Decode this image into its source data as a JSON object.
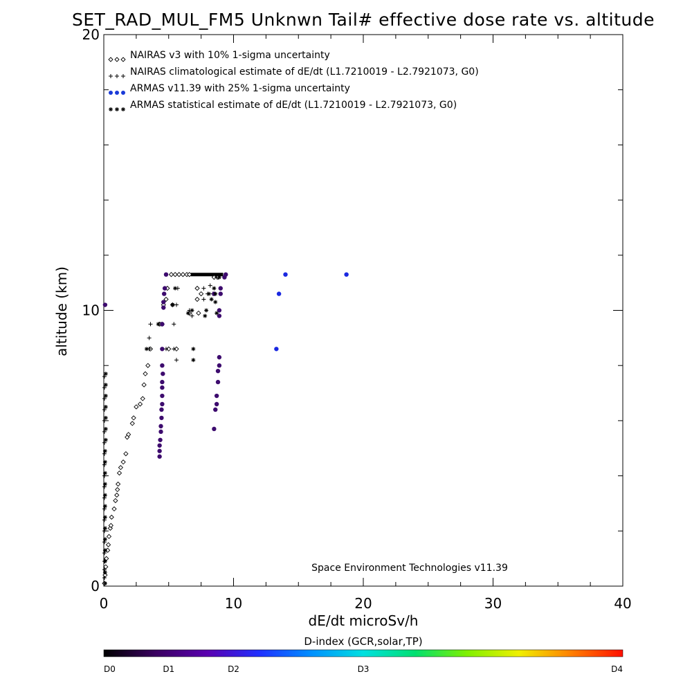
{
  "chart_data": {
    "type": "scatter",
    "title": "SET_RAD_MUL_FM5 Unknwn Tail#  effective dose rate vs. altitude",
    "xlabel": "dE/dt microSv/h",
    "ylabel": "altitude (km)",
    "xlim": [
      0,
      40
    ],
    "ylim": [
      0,
      20
    ],
    "x_ticks": [
      "0",
      "10",
      "20",
      "30",
      "40"
    ],
    "y_ticks": [
      "0",
      "10",
      "20"
    ],
    "grid": false,
    "legend_position": "top-left",
    "credit": "Space Environment Technologies v11.39",
    "series": [
      {
        "name": "NAIRAS v3 with 10% 1-sigma uncertainty",
        "marker": "diamond",
        "color": "#000000",
        "points": [
          [
            0.05,
            0.1
          ],
          [
            0.1,
            0.4
          ],
          [
            0.15,
            0.7
          ],
          [
            0.2,
            1.0
          ],
          [
            0.3,
            1.3
          ],
          [
            0.35,
            1.5
          ],
          [
            0.4,
            1.8
          ],
          [
            0.5,
            2.1
          ],
          [
            0.55,
            2.2
          ],
          [
            0.6,
            2.5
          ],
          [
            0.8,
            2.8
          ],
          [
            0.9,
            3.1
          ],
          [
            1.0,
            3.3
          ],
          [
            1.05,
            3.5
          ],
          [
            1.1,
            3.7
          ],
          [
            1.2,
            4.1
          ],
          [
            1.3,
            4.3
          ],
          [
            1.5,
            4.5
          ],
          [
            1.7,
            4.8
          ],
          [
            1.8,
            5.4
          ],
          [
            1.9,
            5.5
          ],
          [
            2.2,
            5.9
          ],
          [
            2.3,
            6.1
          ],
          [
            2.5,
            6.5
          ],
          [
            2.8,
            6.6
          ],
          [
            3.0,
            6.8
          ],
          [
            3.1,
            7.3
          ],
          [
            3.2,
            7.7
          ],
          [
            3.4,
            8.0
          ],
          [
            3.6,
            8.6
          ],
          [
            4.3,
            9.5
          ],
          [
            4.5,
            9.5
          ],
          [
            4.6,
            10.2
          ],
          [
            4.8,
            10.4
          ],
          [
            4.9,
            10.8
          ],
          [
            5.2,
            11.3
          ],
          [
            5.5,
            11.3
          ],
          [
            5.8,
            11.3
          ],
          [
            6.1,
            11.3
          ],
          [
            6.4,
            11.3
          ],
          [
            6.6,
            11.3
          ],
          [
            5.3,
            10.2
          ],
          [
            5.6,
            8.6
          ],
          [
            6.6,
            9.9
          ],
          [
            7.3,
            9.9
          ],
          [
            7.2,
            10.4
          ],
          [
            7.2,
            10.8
          ],
          [
            7.5,
            10.6
          ],
          [
            8.5,
            11.2
          ],
          [
            8.8,
            11.2
          ],
          [
            5.0,
            8.6
          ]
        ]
      },
      {
        "name": "NAIRAS climatological estimate of dE/dt (L1.7210019 - L2.7921073, G0)",
        "marker": "plus",
        "color": "#000000",
        "points": [
          [
            0.05,
            0.3
          ],
          [
            0.05,
            0.6
          ],
          [
            0.05,
            0.9
          ],
          [
            0.05,
            1.2
          ],
          [
            0.05,
            1.6
          ],
          [
            0.05,
            2.0
          ],
          [
            0.05,
            2.4
          ],
          [
            0.05,
            2.8
          ],
          [
            0.05,
            3.2
          ],
          [
            0.05,
            3.6
          ],
          [
            0.05,
            4.0
          ],
          [
            0.05,
            4.4
          ],
          [
            0.05,
            4.8
          ],
          [
            0.05,
            5.2
          ],
          [
            0.05,
            5.6
          ],
          [
            0.05,
            6.0
          ],
          [
            0.05,
            6.4
          ],
          [
            0.05,
            6.8
          ],
          [
            0.05,
            7.2
          ],
          [
            0.05,
            7.6
          ],
          [
            3.5,
            8.6
          ],
          [
            5.4,
            8.6
          ],
          [
            5.6,
            8.2
          ],
          [
            5.6,
            10.2
          ],
          [
            5.7,
            10.8
          ],
          [
            6.6,
            10.0
          ],
          [
            6.8,
            9.8
          ],
          [
            7.7,
            10.4
          ],
          [
            7.7,
            10.8
          ],
          [
            8.0,
            10.6
          ],
          [
            8.2,
            10.9
          ],
          [
            8.4,
            10.6
          ],
          [
            8.7,
            11.2
          ],
          [
            4.4,
            9.5
          ],
          [
            4.8,
            8.6
          ],
          [
            3.5,
            9.0
          ],
          [
            3.6,
            9.5
          ],
          [
            5.4,
            9.5
          ],
          [
            3.5,
            8.6
          ]
        ]
      },
      {
        "name": "ARMAS v11.39 with 25% 1-sigma uncertainty",
        "marker": "dot",
        "color": "#0033dd",
        "points": [
          [
            4.3,
            4.7
          ],
          [
            4.3,
            4.9
          ],
          [
            4.3,
            5.1
          ],
          [
            4.35,
            5.3
          ],
          [
            4.4,
            5.6
          ],
          [
            4.4,
            5.8
          ],
          [
            4.45,
            6.1
          ],
          [
            4.45,
            6.4
          ],
          [
            4.5,
            6.6
          ],
          [
            4.5,
            6.9
          ],
          [
            4.5,
            7.2
          ],
          [
            4.5,
            7.4
          ],
          [
            4.55,
            7.7
          ],
          [
            4.5,
            8.0
          ],
          [
            4.5,
            8.6
          ],
          [
            4.5,
            9.5
          ],
          [
            4.6,
            10.1
          ],
          [
            4.6,
            10.3
          ],
          [
            4.65,
            10.6
          ],
          [
            4.7,
            10.8
          ],
          [
            4.8,
            11.3
          ],
          [
            8.5,
            5.7
          ],
          [
            8.6,
            6.4
          ],
          [
            8.7,
            6.6
          ],
          [
            8.7,
            6.9
          ],
          [
            8.8,
            7.4
          ],
          [
            8.8,
            7.8
          ],
          [
            8.9,
            8.0
          ],
          [
            8.9,
            8.3
          ],
          [
            8.9,
            9.8
          ],
          [
            8.9,
            10.0
          ],
          [
            9.0,
            10.6
          ],
          [
            9.0,
            10.8
          ],
          [
            9.3,
            11.2
          ],
          [
            9.4,
            11.3
          ],
          [
            13.3,
            8.6
          ],
          [
            13.5,
            10.6
          ],
          [
            14.0,
            11.3
          ],
          [
            18.7,
            11.3
          ],
          [
            0.1,
            10.2
          ],
          [
            8.5,
            10.6
          ]
        ]
      },
      {
        "name": "ARMAS statistical estimate of dE/dt (L1.7210019 - L2.7921073, G0)",
        "marker": "asterisk",
        "color": "#000000",
        "points": [
          [
            0.1,
            0.1
          ],
          [
            0.1,
            0.5
          ],
          [
            0.1,
            0.9
          ],
          [
            0.1,
            1.3
          ],
          [
            0.1,
            1.7
          ],
          [
            0.1,
            2.1
          ],
          [
            0.1,
            2.5
          ],
          [
            0.1,
            2.9
          ],
          [
            0.1,
            3.3
          ],
          [
            0.1,
            3.7
          ],
          [
            0.1,
            4.1
          ],
          [
            0.1,
            4.5
          ],
          [
            0.1,
            4.9
          ],
          [
            0.15,
            5.3
          ],
          [
            0.15,
            5.7
          ],
          [
            0.15,
            6.1
          ],
          [
            0.15,
            6.5
          ],
          [
            0.15,
            6.9
          ],
          [
            0.15,
            7.3
          ],
          [
            0.15,
            7.7
          ],
          [
            3.3,
            8.6
          ],
          [
            4.2,
            9.5
          ],
          [
            5.3,
            10.2
          ],
          [
            5.5,
            10.8
          ],
          [
            6.5,
            9.9
          ],
          [
            6.8,
            10.0
          ],
          [
            6.9,
            8.2
          ],
          [
            6.9,
            8.6
          ],
          [
            7.8,
            9.8
          ],
          [
            7.9,
            10.0
          ],
          [
            8.1,
            10.6
          ],
          [
            8.3,
            10.4
          ],
          [
            8.5,
            10.8
          ],
          [
            8.6,
            10.3
          ],
          [
            8.7,
            9.9
          ],
          [
            8.6,
            10.6
          ],
          [
            8.9,
            11.2
          ]
        ]
      }
    ],
    "cruise_band": {
      "x_from": 6.7,
      "x_to": 9.2,
      "y": 11.3,
      "color": "#000000"
    },
    "colorbar": {
      "title": "D-index (GCR,solar,TP)",
      "labels": [
        {
          "text": "D0",
          "value": 0
        },
        {
          "text": "D1",
          "value": 1
        },
        {
          "text": "D2",
          "value": 2
        },
        {
          "text": "D3",
          "value": 3
        },
        {
          "text": "D4",
          "value": 4
        }
      ],
      "label_x_data": [
        0,
        5,
        10,
        20,
        40
      ],
      "stops": [
        "#000000",
        "#3a0060",
        "#5a00b0",
        "#2030ff",
        "#0090ff",
        "#00e0e0",
        "#00e070",
        "#80f000",
        "#f0f000",
        "#ff8000",
        "#ff1000"
      ]
    }
  }
}
